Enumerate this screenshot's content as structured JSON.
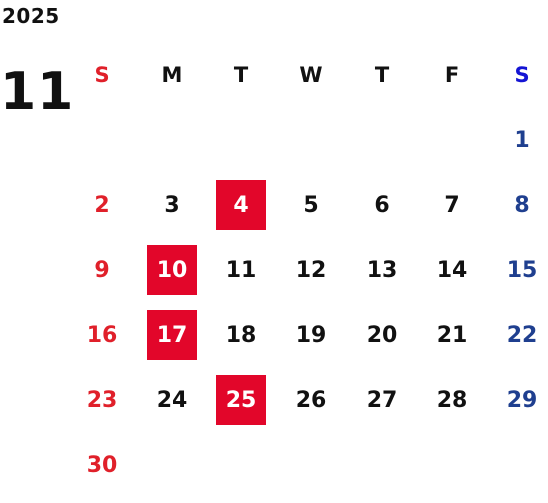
{
  "year": "2025",
  "month": "11",
  "weekdays": [
    "S",
    "M",
    "T",
    "W",
    "T",
    "F",
    "S"
  ],
  "weeks": [
    [
      "",
      "",
      "",
      "",
      "",
      "",
      "1"
    ],
    [
      "2",
      "3",
      "4",
      "5",
      "6",
      "7",
      "8"
    ],
    [
      "9",
      "10",
      "11",
      "12",
      "13",
      "14",
      "15"
    ],
    [
      "16",
      "17",
      "18",
      "19",
      "20",
      "21",
      "22"
    ],
    [
      "23",
      "24",
      "25",
      "26",
      "27",
      "28",
      "29"
    ],
    [
      "30",
      "",
      "",
      "",
      "",
      "",
      ""
    ]
  ],
  "highlighted_days": [
    "4",
    "10",
    "17",
    "25"
  ],
  "colors": {
    "sunday": "#e0202a",
    "saturday": "#1f3f8f",
    "saturday_header": "#1414d4",
    "highlight": "#e2062a"
  }
}
